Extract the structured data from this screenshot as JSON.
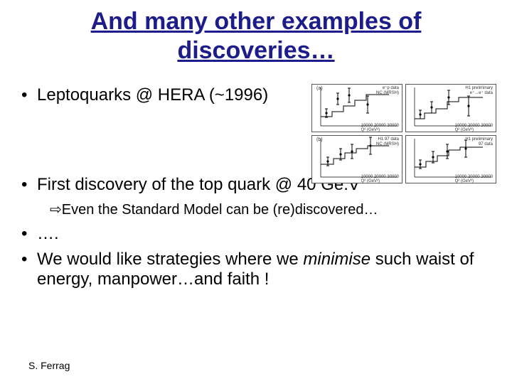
{
  "title_line1": "And many other examples of",
  "title_line2": "discoveries…",
  "bullets": {
    "b1": "Leptoquarks @ HERA (~1996)",
    "b2": "First discovery of the top quark @ 40 Ge.V",
    "b2_sub_prefix": "Even the Standard Model can be (re)discovered…",
    "b3": "….",
    "b4_pre": "We would like strategies where we ",
    "b4_italic": "minimise",
    "b4_post": " such waist of energy, manpower…and faith !"
  },
  "footer": "S. Ferrag",
  "charts": {
    "grid_color": "#888888",
    "line_color": "#000000",
    "background": "#ffffff",
    "panels": [
      {
        "label_a": "(a)",
        "inset": "e⁺p data\\nNC (MRSH)",
        "xaxis": "Q² (GeV²)",
        "xticks": "10000 20000 30000",
        "step_y": [
          45,
          45,
          38,
          38,
          30,
          30,
          22,
          22,
          14,
          14
        ],
        "step_x": [
          12,
          28,
          28,
          44,
          44,
          60,
          60,
          76,
          76,
          108
        ],
        "points": [
          {
            "x": 20,
            "y": 40,
            "e": 6
          },
          {
            "x": 36,
            "y": 20,
            "e": 8
          },
          {
            "x": 52,
            "y": 15,
            "e": 10
          },
          {
            "x": 78,
            "y": 28,
            "e": 12
          }
        ]
      },
      {
        "label_a": "",
        "inset": "H1 preliminary\\ne⁺→e⁺ data",
        "xaxis": "Q² (GeV²)",
        "xticks": "10000 20000 30000",
        "step_y": [
          48,
          48,
          40,
          40,
          34,
          34,
          24,
          24,
          18,
          18
        ],
        "step_x": [
          12,
          26,
          26,
          42,
          42,
          58,
          58,
          74,
          74,
          108
        ],
        "points": [
          {
            "x": 20,
            "y": 42,
            "e": 6
          },
          {
            "x": 36,
            "y": 32,
            "e": 8
          },
          {
            "x": 60,
            "y": 18,
            "e": 10
          },
          {
            "x": 88,
            "y": 30,
            "e": 14
          }
        ]
      },
      {
        "label_a": "(b)",
        "inset": "H1 97 data\\nNC (MRSH)",
        "xaxis": "Q² (GeV²)",
        "xticks": "10000 20000 30000",
        "step_y": [
          40,
          40,
          32,
          32,
          24,
          24,
          18,
          18,
          14,
          14
        ],
        "step_x": [
          12,
          30,
          30,
          46,
          46,
          62,
          62,
          78,
          78,
          108
        ],
        "points": [
          {
            "x": 22,
            "y": 36,
            "e": 6
          },
          {
            "x": 40,
            "y": 26,
            "e": 8
          },
          {
            "x": 56,
            "y": 22,
            "e": 10
          },
          {
            "x": 82,
            "y": 14,
            "e": 12
          }
        ]
      },
      {
        "label_a": "",
        "inset": "H1 preliminary\\n97 data",
        "xaxis": "Q² (GeV²)",
        "xticks": "10000 20000 30000",
        "step_y": [
          44,
          44,
          36,
          36,
          28,
          28,
          20,
          20,
          16,
          16
        ],
        "step_x": [
          12,
          28,
          28,
          44,
          44,
          60,
          60,
          76,
          76,
          108
        ],
        "points": [
          {
            "x": 20,
            "y": 40,
            "e": 6
          },
          {
            "x": 38,
            "y": 30,
            "e": 8
          },
          {
            "x": 58,
            "y": 22,
            "e": 10
          },
          {
            "x": 84,
            "y": 18,
            "e": 12
          }
        ]
      }
    ]
  }
}
